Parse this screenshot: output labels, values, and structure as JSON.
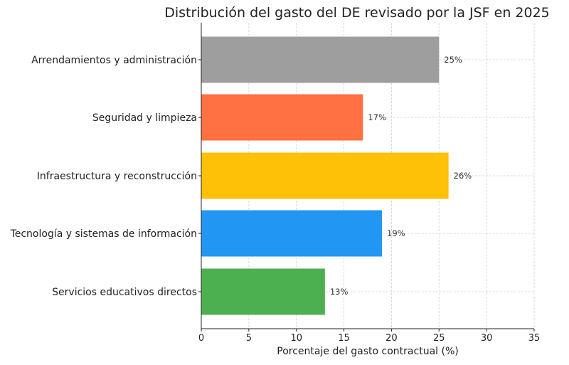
{
  "chart_data": {
    "type": "bar",
    "orientation": "horizontal",
    "title": "Distribución del gasto del DE revisado por la JSF en 2025",
    "xlabel": "Porcentaje del gasto contractual (%)",
    "ylabel": "",
    "xlim": [
      0,
      35
    ],
    "xticks": [
      0,
      5,
      10,
      15,
      20,
      25,
      30,
      35
    ],
    "grid": true,
    "categories": [
      "Arrendamientos y administración",
      "Seguridad y limpieza",
      "Infraestructura y reconstrucción",
      "Tecnología y sistemas de información",
      "Servicios educativos directos"
    ],
    "values": [
      25,
      17,
      26,
      19,
      13
    ],
    "data_labels": [
      "25%",
      "17%",
      "26%",
      "19%",
      "13%"
    ],
    "colors": [
      "#9e9e9e",
      "#ff7043",
      "#ffc107",
      "#2196f3",
      "#4caf50"
    ]
  }
}
